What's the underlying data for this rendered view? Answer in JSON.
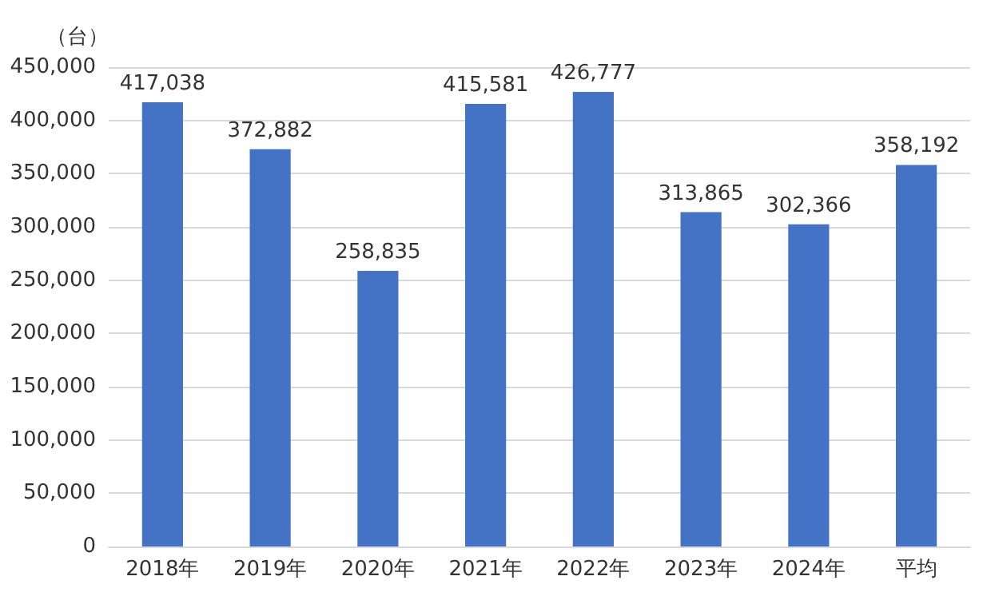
{
  "chart_data": {
    "type": "bar",
    "ylabel": "（台）",
    "categories": [
      "2018年",
      "2019年",
      "2020年",
      "2021年",
      "2022年",
      "2023年",
      "2024年",
      "平均"
    ],
    "values": [
      417038,
      372882,
      258835,
      415581,
      426777,
      313865,
      302366,
      358192
    ],
    "value_labels": [
      "417,038",
      "372,882",
      "258,835",
      "415,581",
      "426,777",
      "313,865",
      "302,366",
      "358,192"
    ],
    "color": "#4472c4",
    "ylim": [
      0,
      450000
    ],
    "yticks": [
      0,
      {
        "value": 50000,
        "label": "50,000"
      },
      {
        "value": 100000,
        "label": "100,000"
      },
      {
        "value": 150000,
        "label": "150,000"
      },
      {
        "value": 200000,
        "label": "200,000"
      },
      {
        "value": 250000,
        "label": "250,000"
      },
      {
        "value": 300000,
        "label": "300,000"
      },
      {
        "value": 350000,
        "label": "350,000"
      },
      {
        "value": 400000,
        "label": "400,000"
      },
      {
        "value": 450000,
        "label": "450,000"
      }
    ],
    "grid": "y"
  }
}
